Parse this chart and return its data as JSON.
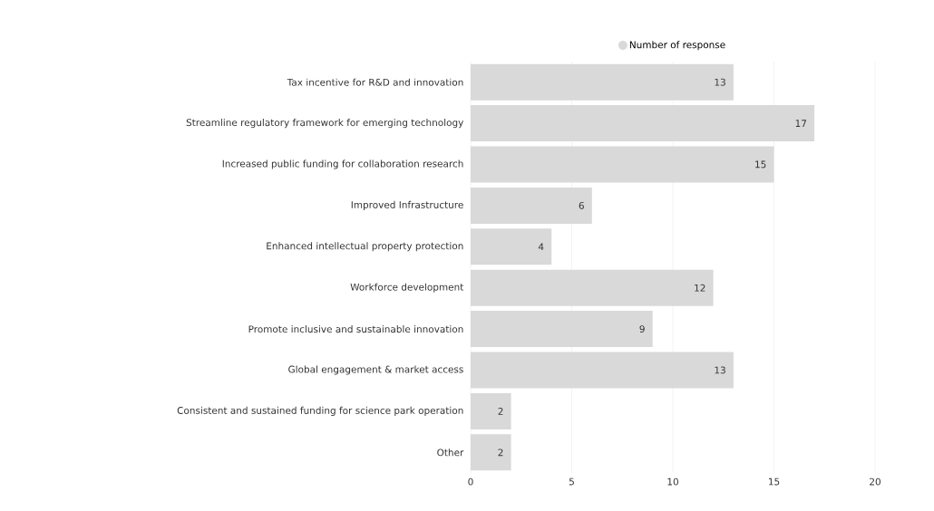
{
  "chart_data": {
    "type": "bar",
    "orientation": "horizontal",
    "categories": [
      "Tax incentive for R&D and innovation",
      "Streamline regulatory framework for emerging technology",
      "Increased public funding for collaboration research",
      "Improved Infrastructure",
      "Enhanced intellectual property protection",
      "Workforce development",
      "Promote inclusive and sustainable innovation",
      "Global engagement & market access",
      "Consistent and sustained funding for science park operation",
      "Other"
    ],
    "series": [
      {
        "name": "Number of response",
        "color": "#d9d9d9",
        "values": [
          13,
          17,
          15,
          6,
          4,
          12,
          9,
          13,
          2,
          2
        ]
      }
    ],
    "xlim": [
      0,
      20
    ],
    "xticks": [
      0,
      5,
      10,
      15,
      20
    ],
    "grid": "x",
    "legend": "top",
    "data_labels": true
  }
}
